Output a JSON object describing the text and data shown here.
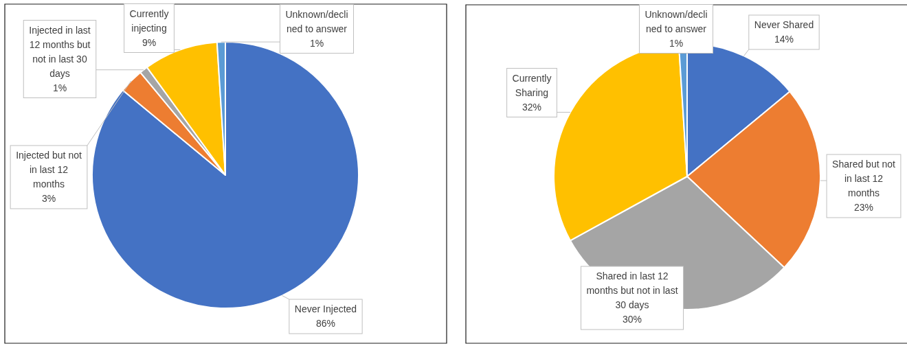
{
  "chart_data": [
    {
      "type": "pie",
      "categories": [
        "Never Injected",
        "Injected but not in last 12 months",
        "Injected in last 12 months but not in last 30 days",
        "Currently injecting",
        "Unknown/declined to answer"
      ],
      "values": [
        86,
        3,
        1,
        9,
        1
      ],
      "colors": [
        "#4472c4",
        "#ed7d31",
        "#a5a5a5",
        "#ffc000",
        "#5b9bd5"
      ],
      "value_labels": [
        "86%",
        "3%",
        "1%",
        "9%",
        "1%"
      ]
    },
    {
      "type": "pie",
      "categories": [
        "Never Shared",
        "Shared but not in last 12 months",
        "Shared in last 12 months but not in last 30 days",
        "Currently Sharing",
        "Unknown/declined to answer"
      ],
      "values": [
        14,
        23,
        30,
        32,
        1
      ],
      "colors": [
        "#4472c4",
        "#ed7d31",
        "#a5a5a5",
        "#ffc000",
        "#5b9bd5"
      ],
      "value_labels": [
        "14%",
        "23%",
        "30%",
        "32%",
        "1%"
      ]
    }
  ]
}
